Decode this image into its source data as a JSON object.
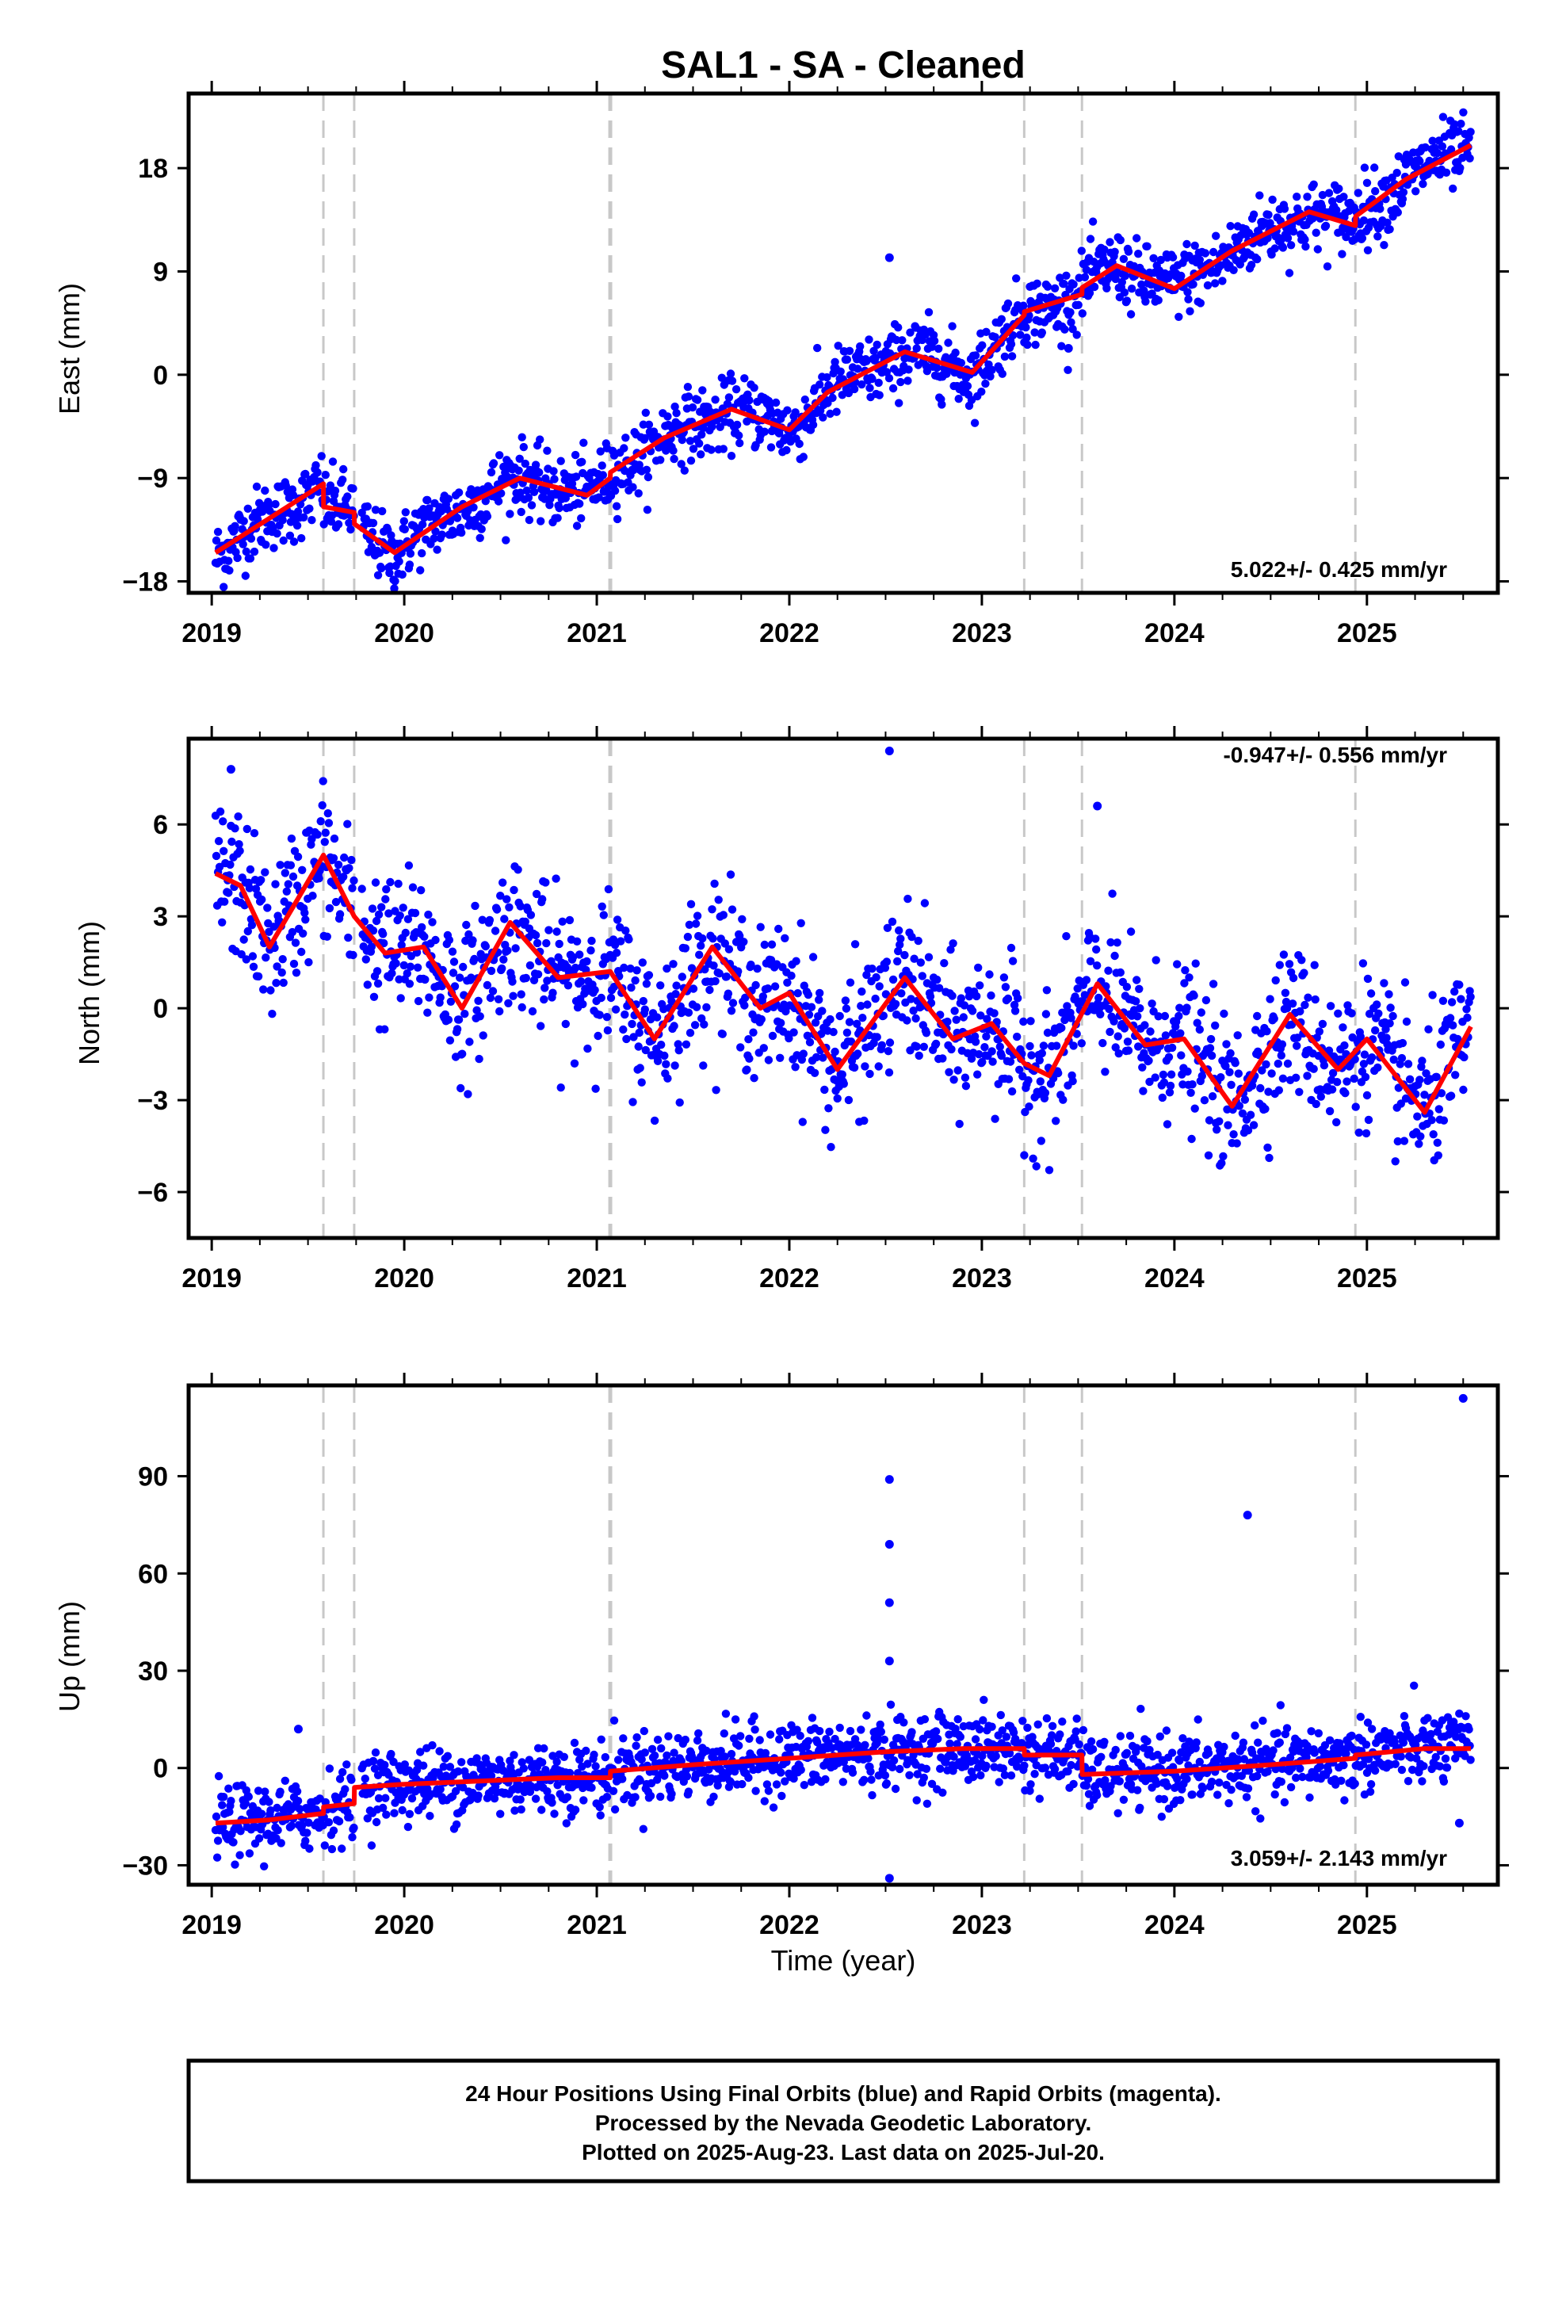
{
  "figure": {
    "title": "SAL1  - SA - Cleaned",
    "xlabel": "Time (year)"
  },
  "footer": {
    "lines": [
      "24 Hour Positions Using Final Orbits (blue) and Rapid Orbits (magenta).",
      "Processed by the Nevada Geodetic Laboratory.",
      "Plotted on 2025-Aug-23. Last data on 2025-Jul-20."
    ]
  },
  "colors": {
    "points": "#0000ff",
    "model": "#ff0000",
    "steps": "#c8c8c8",
    "frame": "#000000"
  },
  "chart_data": [
    {
      "type": "scatter",
      "name": "east",
      "ylabel": "East (mm)",
      "rate_text": "5.022+/- 0.425 mm/yr",
      "rate_position": "bottom-right",
      "xlim": [
        2018.88,
        2025.68
      ],
      "ylim": [
        -19,
        24.5
      ],
      "yticks": [
        -18,
        -9,
        0,
        9,
        18
      ],
      "xticks": [
        2019,
        2020,
        2021,
        2022,
        2023,
        2024,
        2025
      ],
      "step_lines": [
        2019.58,
        2019.74,
        2021.07,
        2023.22,
        2023.52,
        2024.94
      ],
      "model": {
        "x": [
          2019.02,
          2019.3,
          2019.58,
          2019.581,
          2019.74,
          2019.741,
          2019.95,
          2020.3,
          2020.6,
          2020.95,
          2021.07,
          2021.071,
          2021.35,
          2021.7,
          2022.0,
          2022.2,
          2022.6,
          2022.95,
          2023.22,
          2023.221,
          2023.52,
          2023.521,
          2023.7,
          2024.0,
          2024.3,
          2024.7,
          2024.94,
          2024.941,
          2025.2,
          2025.54
        ],
        "y": [
          -15.5,
          -12.5,
          -9.5,
          -11.5,
          -12.0,
          -13.0,
          -15.5,
          -11.5,
          -9.0,
          -10.5,
          -9.0,
          -8.5,
          -5.5,
          -3.0,
          -4.8,
          -1.5,
          2.0,
          0.2,
          5.2,
          5.5,
          7.0,
          7.6,
          9.5,
          7.5,
          10.8,
          14.2,
          13.0,
          13.8,
          17.0,
          20.0
        ]
      },
      "trend": {
        "x0": 2019.02,
        "y0": -15.3,
        "slope": 5.32,
        "noise": 1.5
      },
      "seasonal_amp": 1.4,
      "outliers": {
        "x": [
          2022.52,
          2023.45
        ],
        "y": [
          10.2,
          2.3
        ]
      }
    },
    {
      "type": "scatter",
      "name": "north",
      "ylabel": "North (mm)",
      "rate_text": "-0.947+/- 0.556 mm/yr",
      "rate_position": "top-right",
      "xlim": [
        2018.88,
        2025.68
      ],
      "ylim": [
        -7.5,
        8.8
      ],
      "yticks": [
        -6,
        -3,
        0,
        3,
        6
      ],
      "xticks": [
        2019,
        2020,
        2021,
        2022,
        2023,
        2024,
        2025
      ],
      "step_lines": [
        2019.58,
        2019.74,
        2021.07,
        2023.22,
        2023.52,
        2024.94
      ],
      "model": {
        "x": [
          2019.02,
          2019.15,
          2019.3,
          2019.45,
          2019.58,
          2019.74,
          2019.9,
          2020.1,
          2020.3,
          2020.55,
          2020.8,
          2021.07,
          2021.3,
          2021.6,
          2021.85,
          2022.0,
          2022.25,
          2022.6,
          2022.85,
          2023.05,
          2023.22,
          2023.35,
          2023.6,
          2023.85,
          2024.05,
          2024.3,
          2024.6,
          2024.85,
          2025.0,
          2025.3,
          2025.54
        ],
        "y": [
          4.4,
          4.0,
          2.0,
          3.6,
          5.0,
          3.0,
          1.8,
          2.0,
          0.0,
          2.8,
          1.0,
          1.2,
          -1.0,
          2.0,
          0.0,
          0.5,
          -2.0,
          1.0,
          -1.0,
          -0.5,
          -1.8,
          -2.2,
          0.8,
          -1.2,
          -1.0,
          -3.2,
          -0.2,
          -2.0,
          -1.0,
          -3.4,
          -0.6
        ]
      },
      "noise": 1.2,
      "outliers": {
        "x": [
          2022.52,
          2023.6,
          2019.1
        ],
        "y": [
          8.4,
          6.6,
          7.8
        ]
      }
    },
    {
      "type": "scatter",
      "name": "up",
      "ylabel": "Up (mm)",
      "rate_text": "3.059+/- 2.143 mm/yr",
      "rate_position": "bottom-right",
      "xlim": [
        2018.88,
        2025.68
      ],
      "ylim": [
        -36,
        118
      ],
      "yticks": [
        -30,
        0,
        30,
        60,
        90
      ],
      "xticks": [
        2019,
        2020,
        2021,
        2022,
        2023,
        2024,
        2025
      ],
      "step_lines": [
        2019.58,
        2019.74,
        2021.07,
        2023.22,
        2023.52,
        2024.94
      ],
      "model": {
        "x": [
          2019.02,
          2019.3,
          2019.58,
          2019.581,
          2019.74,
          2019.741,
          2020.0,
          2020.4,
          2020.8,
          2021.07,
          2021.071,
          2021.5,
          2022.0,
          2022.5,
          2022.9,
          2023.22,
          2023.221,
          2023.52,
          2023.521,
          2024.0,
          2024.5,
          2024.94,
          2024.941,
          2025.3,
          2025.54
        ],
        "y": [
          -17,
          -16,
          -14,
          -12,
          -11,
          -6,
          -5,
          -4,
          -3,
          -3,
          -1,
          1,
          3,
          5,
          6,
          6,
          4,
          4,
          -2,
          -1,
          1,
          3,
          4,
          6,
          6
        ]
      },
      "noise": 5.5,
      "outliers": {
        "x": [
          2022.52,
          2022.52,
          2022.52,
          2022.52,
          2022.52,
          2024.38,
          2025.5,
          2019.45,
          2025.48
        ],
        "y": [
          89,
          69,
          51,
          33,
          -34,
          78,
          114,
          12,
          -17
        ]
      }
    }
  ]
}
